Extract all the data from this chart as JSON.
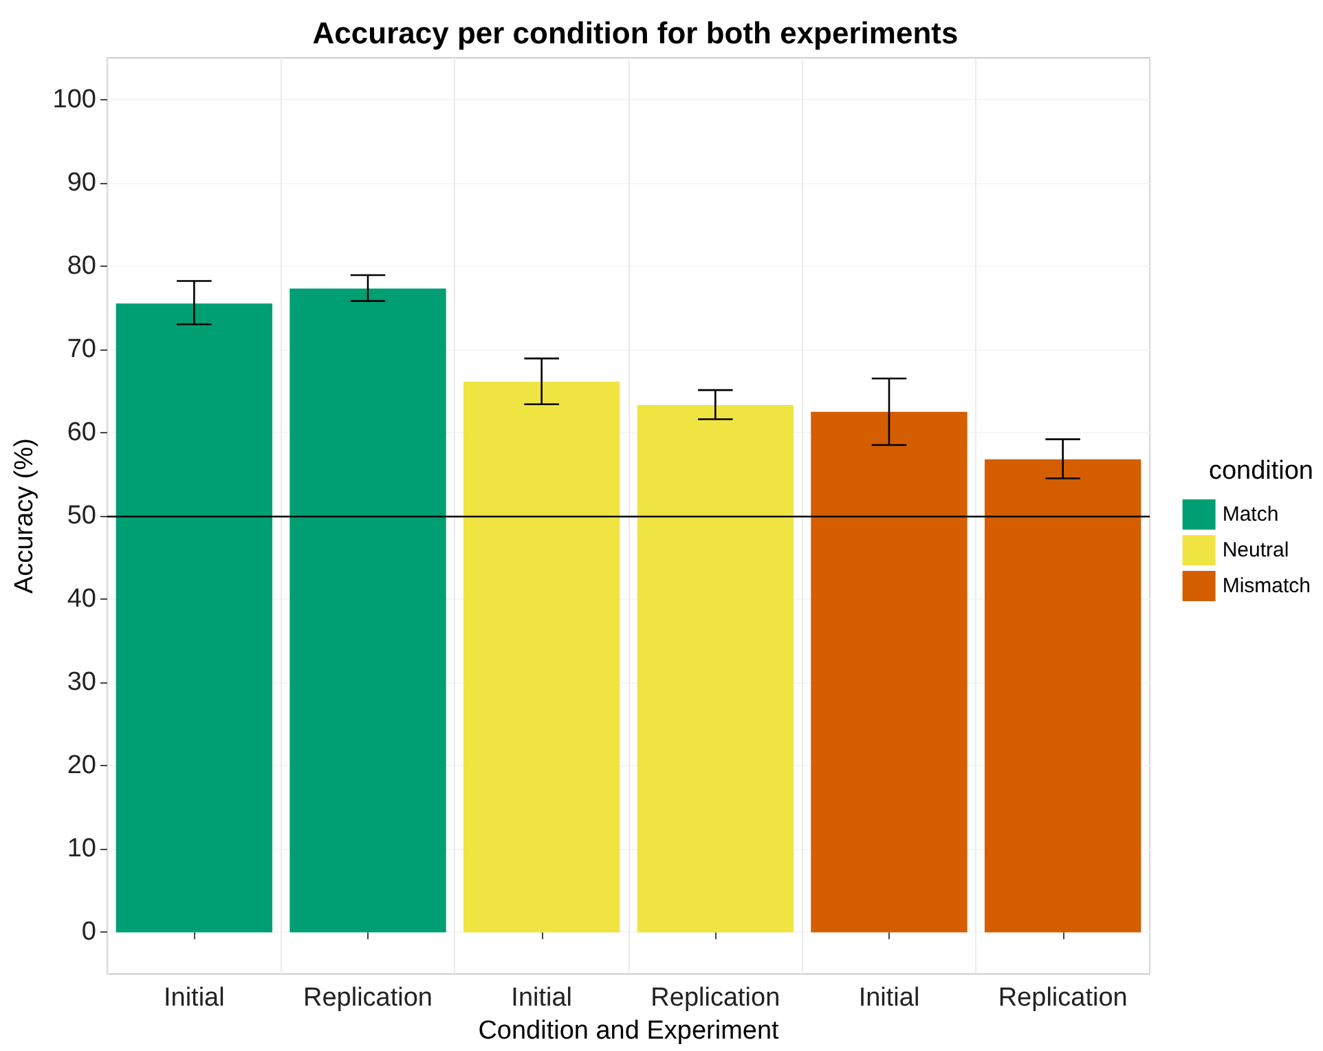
{
  "chart_data": {
    "type": "bar",
    "title": "Accuracy per condition for both experiments",
    "xlabel": "Condition and Experiment",
    "ylabel": "Accuracy (%)",
    "legend_title": "condition",
    "categories": [
      "Initial",
      "Replication",
      "Initial",
      "Replication",
      "Initial",
      "Replication"
    ],
    "series": [
      {
        "name": "Match",
        "color": "#009e73",
        "values": [
          75.5,
          77.3,
          null,
          null,
          null,
          null
        ],
        "errors": [
          [
            73.0,
            78.2
          ],
          [
            75.8,
            78.9
          ],
          null,
          null,
          null,
          null
        ]
      },
      {
        "name": "Neutral",
        "color": "#f0e442",
        "values": [
          null,
          null,
          66.1,
          63.3,
          null,
          null
        ],
        "errors": [
          null,
          null,
          [
            63.4,
            68.9
          ],
          [
            61.6,
            65.1
          ],
          null,
          null
        ]
      },
      {
        "name": "Mismatch",
        "color": "#d55e00",
        "values": [
          null,
          null,
          null,
          null,
          62.5,
          56.8
        ],
        "errors": [
          null,
          null,
          null,
          null,
          [
            58.5,
            66.5
          ],
          [
            54.5,
            59.2
          ]
        ]
      }
    ],
    "ylim": [
      -5,
      105
    ],
    "yticks": [
      0,
      10,
      20,
      30,
      40,
      50,
      60,
      70,
      80,
      90,
      100
    ],
    "ref_lines": [
      {
        "axis": "y",
        "value": 50,
        "color": "#000000"
      }
    ],
    "grid": true,
    "legend": "right"
  }
}
